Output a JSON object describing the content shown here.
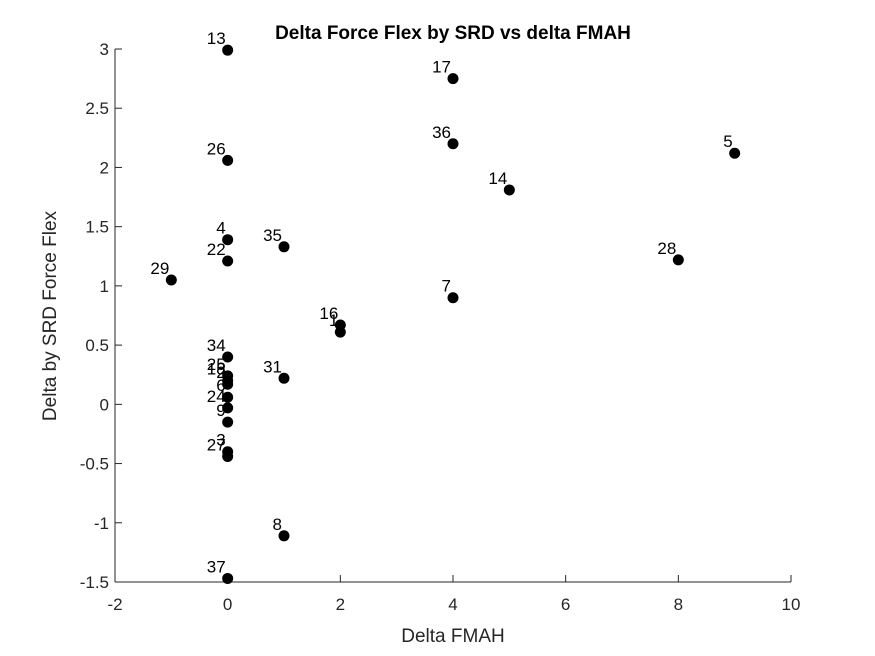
{
  "chart_data": {
    "type": "scatter",
    "title": "Delta Force Flex by SRD vs delta FMAH",
    "xlabel": "Delta FMAH",
    "ylabel": "Delta by SRD Force Flex",
    "xlim": [
      -2,
      10
    ],
    "ylim": [
      -1.5,
      3
    ],
    "xticks": [
      "-2",
      "0",
      "2",
      "4",
      "6",
      "8",
      "10"
    ],
    "yticks": [
      "-1.5",
      "-1",
      "-0.5",
      "0",
      "0.5",
      "1",
      "1.5",
      "2",
      "2.5",
      "3"
    ],
    "grid": false,
    "marker_color": "#000000",
    "axis_color": "#262626",
    "points": [
      {
        "label": "13",
        "x": 0,
        "y": 2.99
      },
      {
        "label": "17",
        "x": 4,
        "y": 2.75
      },
      {
        "label": "36",
        "x": 4,
        "y": 2.2
      },
      {
        "label": "5",
        "x": 9,
        "y": 2.12
      },
      {
        "label": "26",
        "x": 0,
        "y": 2.06
      },
      {
        "label": "14",
        "x": 5,
        "y": 1.81
      },
      {
        "label": "4",
        "x": 0,
        "y": 1.39
      },
      {
        "label": "35",
        "x": 1,
        "y": 1.33
      },
      {
        "label": "28",
        "x": 8,
        "y": 1.22
      },
      {
        "label": "22",
        "x": 0,
        "y": 1.21
      },
      {
        "label": "29",
        "x": -1,
        "y": 1.05
      },
      {
        "label": "7",
        "x": 4,
        "y": 0.9
      },
      {
        "label": "16",
        "x": 2,
        "y": 0.67
      },
      {
        "label": "1",
        "x": 2,
        "y": 0.61
      },
      {
        "label": "34",
        "x": 0,
        "y": 0.4
      },
      {
        "label": "25",
        "x": 0,
        "y": 0.24
      },
      {
        "label": "31",
        "x": 1,
        "y": 0.22
      },
      {
        "label": "18",
        "x": 0,
        "y": 0.2
      },
      {
        "label": "2",
        "x": 0,
        "y": 0.17
      },
      {
        "label": "6",
        "x": 0,
        "y": 0.06
      },
      {
        "label": "24",
        "x": 0,
        "y": -0.03
      },
      {
        "label": "9",
        "x": 0,
        "y": -0.15
      },
      {
        "label": "3",
        "x": 0,
        "y": -0.4
      },
      {
        "label": "27",
        "x": 0,
        "y": -0.44
      },
      {
        "label": "8",
        "x": 1,
        "y": -1.11
      },
      {
        "label": "37",
        "x": 0,
        "y": -1.47
      }
    ]
  }
}
